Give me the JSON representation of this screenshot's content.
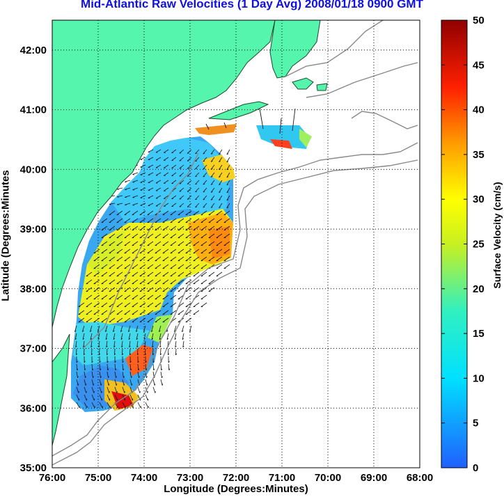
{
  "title": "Mid-Atlantic Raw Velocities (1 Day Avg) 2008/01/18 0900 GMT",
  "xlabel": "Longitude (Degrees:Minutes)",
  "ylabel": "Latitude (Degrees:Minutes",
  "colorbar_label": "Surface Velocity (cm/s)",
  "colors": {
    "land": "#55f5ae",
    "title": "#1010e0",
    "coast": "#888888"
  },
  "map": {
    "lon_range": [
      -76,
      -68
    ],
    "lat_range": [
      35,
      42.5
    ],
    "lon_ticks": [
      {
        "v": -76,
        "label": "76:00"
      },
      {
        "v": -75,
        "label": "75:00"
      },
      {
        "v": -74,
        "label": "74:00"
      },
      {
        "v": -73,
        "label": "73:00"
      },
      {
        "v": -72,
        "label": "72:00"
      },
      {
        "v": -71,
        "label": "71:00"
      },
      {
        "v": -70,
        "label": "70:00"
      },
      {
        "v": -69,
        "label": "69:00"
      },
      {
        "v": -68,
        "label": "68:00"
      }
    ],
    "lat_ticks": [
      {
        "v": 35,
        "label": "35:00"
      },
      {
        "v": 36,
        "label": "36:00"
      },
      {
        "v": 37,
        "label": "37:00"
      },
      {
        "v": 38,
        "label": "38:00"
      },
      {
        "v": 39,
        "label": "39:00"
      },
      {
        "v": 40,
        "label": "40:00"
      },
      {
        "v": 41,
        "label": "41:00"
      },
      {
        "v": 42,
        "label": "42:00"
      }
    ],
    "colorbar": {
      "min": 0,
      "max": 50,
      "ticks": [
        "0",
        "5",
        "10",
        "15",
        "20",
        "25",
        "30",
        "35",
        "40",
        "45",
        "50"
      ]
    }
  }
}
